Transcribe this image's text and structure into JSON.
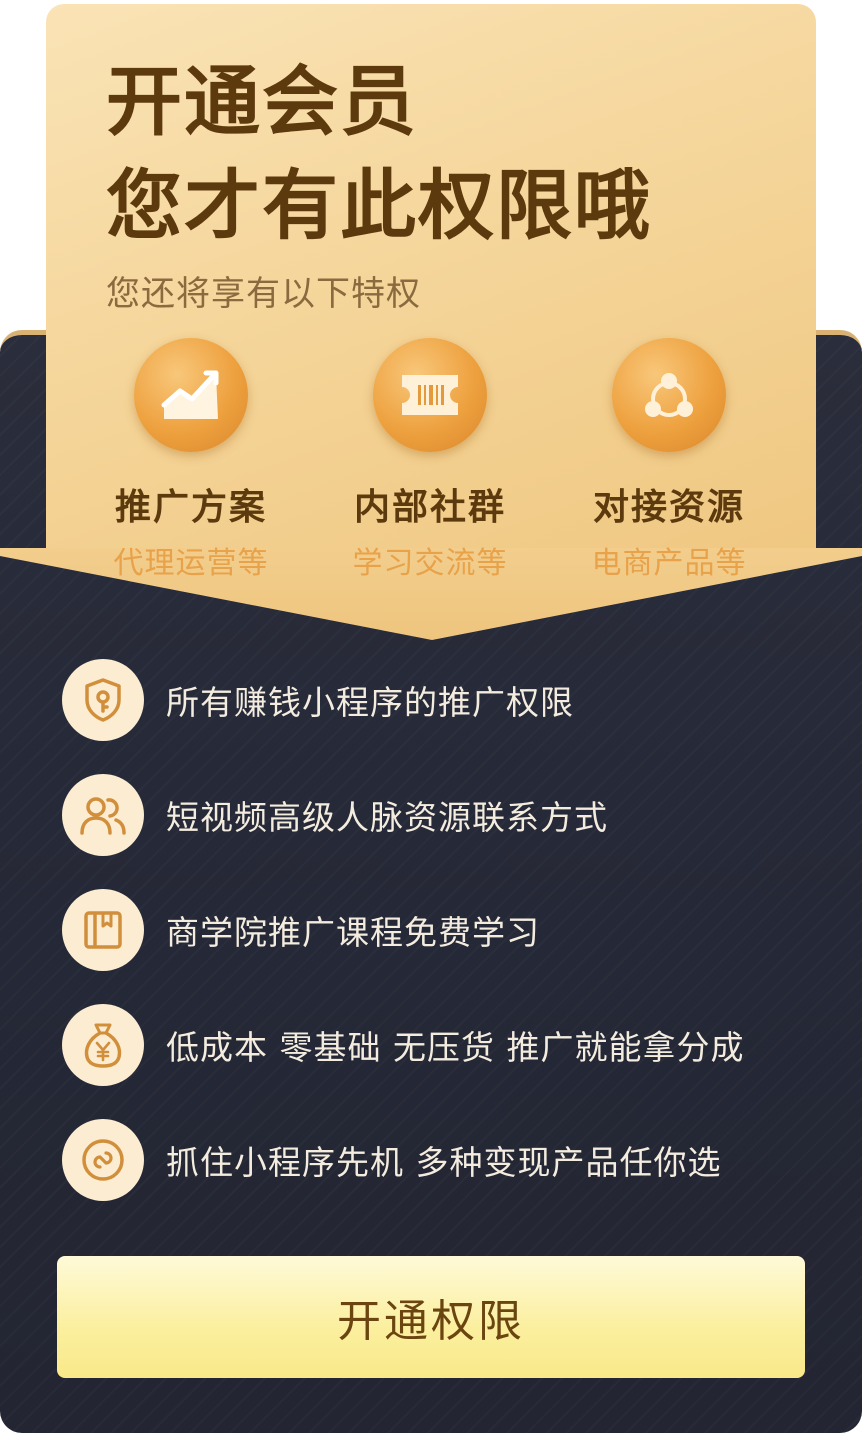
{
  "header": {
    "title_line1": "开通会员",
    "title_line2": "您才有此权限哦",
    "subtitle": "您还将享有以下特权"
  },
  "perks": [
    {
      "icon": "trend-chart-icon",
      "title": "推广方案",
      "subtitle": "代理运营等"
    },
    {
      "icon": "ticket-icon",
      "title": "内部社群",
      "subtitle": "学习交流等"
    },
    {
      "icon": "network-icon",
      "title": "对接资源",
      "subtitle": "电商产品等"
    }
  ],
  "benefits": [
    {
      "icon": "shield-key-icon",
      "text": "所有赚钱小程序的推广权限"
    },
    {
      "icon": "users-icon",
      "text": "短视频高级人脉资源联系方式"
    },
    {
      "icon": "book-icon",
      "text": "商学院推广课程免费学习"
    },
    {
      "icon": "money-bag-icon",
      "text": "低成本 零基础 无压货 推广就能拿分成"
    },
    {
      "icon": "link-icon",
      "text": "抓住小程序先机 多种变现产品任你选"
    }
  ],
  "cta": {
    "label": "开通权限"
  },
  "colors": {
    "gold_light": "#fae3b6",
    "gold": "#efc781",
    "title_brown": "#5d3a0e",
    "perk_orange": "#eea13f",
    "dark_bg": "#252836",
    "benefit_text": "#f3ecdf",
    "cta_yellow": "#fbef9e"
  }
}
